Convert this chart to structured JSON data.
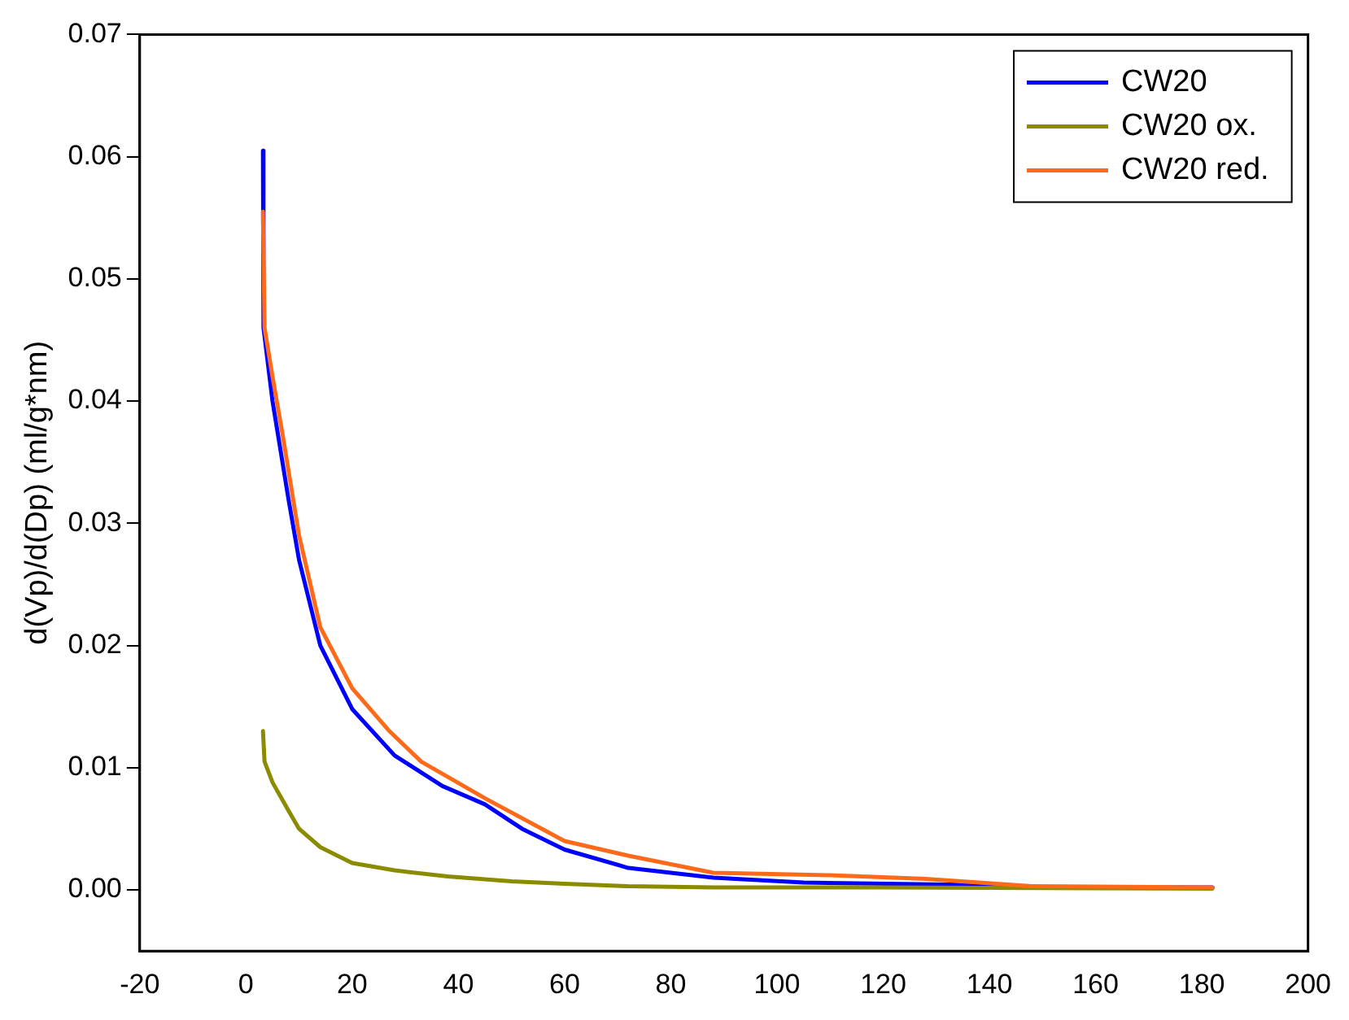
{
  "chart_data": {
    "type": "line",
    "ylabel": "d(Vp)/d(Dp) (ml/g*nm)",
    "legend": "top right",
    "grid": false,
    "marker": "none",
    "line_style": "solid",
    "xlim": [
      -20,
      200
    ],
    "xticks": [
      -20,
      0,
      20,
      40,
      60,
      80,
      100,
      120,
      140,
      160,
      180,
      200
    ],
    "ylim": [
      -0.005,
      0.07
    ],
    "yticks": [
      {
        "value": 0,
        "label": "0.00"
      },
      {
        "value": 0.01,
        "label": "0.01"
      },
      {
        "value": 0.02,
        "label": "0.02"
      },
      {
        "value": 0.03,
        "label": "0.03"
      },
      {
        "value": 0.04,
        "label": "0.04"
      },
      {
        "value": 0.05,
        "label": "0.05"
      },
      {
        "value": 0.06,
        "label": "0.06"
      },
      {
        "value": 0.07,
        "label": "0.07"
      }
    ],
    "series": [
      {
        "name": "CW20",
        "color": "#0000ff",
        "x": [
          3.2,
          3.3,
          5,
          8,
          10,
          14,
          20,
          28,
          37,
          45,
          52,
          60,
          72,
          88,
          105,
          138,
          150,
          182
        ],
        "values": [
          0.0605,
          0.046,
          0.04,
          0.032,
          0.027,
          0.02,
          0.0148,
          0.011,
          0.0085,
          0.007,
          0.005,
          0.0033,
          0.0018,
          0.001,
          0.0006,
          0.0004,
          0.0002,
          0.0002
        ]
      },
      {
        "name": "CW20 ox.",
        "color": "#8b8b00",
        "x": [
          3.2,
          3.5,
          5,
          8,
          10,
          14,
          20,
          28,
          38,
          50,
          60,
          72,
          88,
          120,
          182
        ],
        "values": [
          0.013,
          0.0105,
          0.0088,
          0.0065,
          0.005,
          0.0035,
          0.0022,
          0.0016,
          0.0011,
          0.0007,
          0.0005,
          0.0003,
          0.0002,
          0.0002,
          0.0001
        ]
      },
      {
        "name": "CW20 red.",
        "color": "#ff6a1a",
        "x": [
          3.2,
          3.5,
          5,
          7,
          10,
          14,
          20,
          27,
          33,
          45,
          60,
          72,
          88,
          110,
          128,
          148,
          182
        ],
        "values": [
          0.0555,
          0.046,
          0.042,
          0.037,
          0.029,
          0.0215,
          0.0165,
          0.013,
          0.0105,
          0.0075,
          0.004,
          0.0028,
          0.0014,
          0.0012,
          0.0009,
          0.0003,
          0.0002
        ]
      }
    ]
  }
}
